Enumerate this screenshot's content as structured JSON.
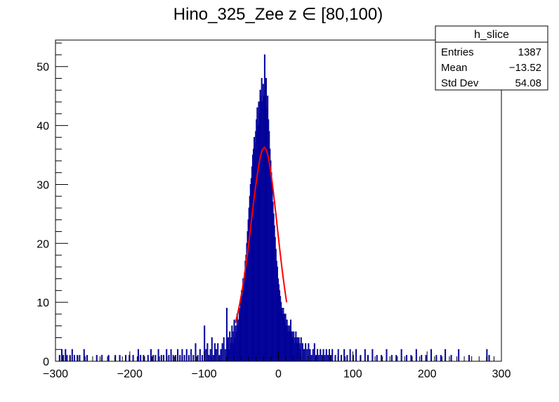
{
  "chart_data": {
    "type": "histogram",
    "title": "Hino_325_Zee z  ∈ [80,100)",
    "xlabel": "",
    "ylabel": "",
    "xlim": [
      -300,
      300
    ],
    "ylim": [
      0,
      54.5
    ],
    "x_ticks": [
      -300,
      -200,
      -100,
      0,
      100,
      200,
      300
    ],
    "y_ticks": [
      0,
      10,
      20,
      30,
      40,
      50
    ],
    "x_tick_labels": [
      "−300",
      "−200",
      "−100",
      "0",
      "100",
      "200",
      "300"
    ],
    "y_tick_labels": [
      "0",
      "10",
      "20",
      "30",
      "40",
      "50"
    ],
    "grid": false,
    "series": [
      {
        "kind": "histogram",
        "color": "#000099",
        "bins_from": -300,
        "bin_width": 1,
        "nonzero_bins": [
          [
            -295,
            1
          ],
          [
            -292,
            2
          ],
          [
            -290,
            1
          ],
          [
            -287,
            2
          ],
          [
            -285,
            1
          ],
          [
            -281,
            1
          ],
          [
            -278,
            2
          ],
          [
            -275,
            1
          ],
          [
            -271,
            1
          ],
          [
            -268,
            1
          ],
          [
            -262,
            2
          ],
          [
            -258,
            1
          ],
          [
            -245,
            1
          ],
          [
            -238,
            1
          ],
          [
            -229,
            1
          ],
          [
            -220,
            1
          ],
          [
            -214,
            1
          ],
          [
            -206,
            1
          ],
          [
            -201,
            1
          ],
          [
            -196,
            1
          ],
          [
            -189,
            2
          ],
          [
            -186,
            1
          ],
          [
            -182,
            1
          ],
          [
            -176,
            1
          ],
          [
            -172,
            2
          ],
          [
            -169,
            1
          ],
          [
            -166,
            1
          ],
          [
            -162,
            2
          ],
          [
            -158,
            1
          ],
          [
            -155,
            1
          ],
          [
            -151,
            2
          ],
          [
            -148,
            1
          ],
          [
            -145,
            2
          ],
          [
            -142,
            1
          ],
          [
            -139,
            1
          ],
          [
            -136,
            2
          ],
          [
            -133,
            1
          ],
          [
            -130,
            2
          ],
          [
            -127,
            1
          ],
          [
            -124,
            2
          ],
          [
            -121,
            1
          ],
          [
            -118,
            2
          ],
          [
            -115,
            1
          ],
          [
            -112,
            3
          ],
          [
            -109,
            1
          ],
          [
            -106,
            2
          ],
          [
            -103,
            1
          ],
          [
            -100,
            6
          ],
          [
            -98,
            2
          ],
          [
            -96,
            3
          ],
          [
            -94,
            1
          ],
          [
            -92,
            2
          ],
          [
            -90,
            4
          ],
          [
            -88,
            1
          ],
          [
            -86,
            3
          ],
          [
            -84,
            2
          ],
          [
            -82,
            3
          ],
          [
            -80,
            1
          ],
          [
            -78,
            2
          ],
          [
            -76,
            3
          ],
          [
            -74,
            4
          ],
          [
            -72,
            2
          ],
          [
            -70,
            9
          ],
          [
            -69,
            3
          ],
          [
            -68,
            4
          ],
          [
            -67,
            2
          ],
          [
            -66,
            5
          ],
          [
            -65,
            3
          ],
          [
            -64,
            4
          ],
          [
            -63,
            6
          ],
          [
            -62,
            3
          ],
          [
            -61,
            5
          ],
          [
            -60,
            7
          ],
          [
            -59,
            4
          ],
          [
            -58,
            6
          ],
          [
            -57,
            5
          ],
          [
            -56,
            8
          ],
          [
            -55,
            6
          ],
          [
            -54,
            7
          ],
          [
            -53,
            9
          ],
          [
            -52,
            8
          ],
          [
            -51,
            10
          ],
          [
            -50,
            12
          ],
          [
            -49,
            11
          ],
          [
            -48,
            14
          ],
          [
            -47,
            13
          ],
          [
            -46,
            15
          ],
          [
            -45,
            17
          ],
          [
            -44,
            18
          ],
          [
            -43,
            20
          ],
          [
            -42,
            22
          ],
          [
            -41,
            24
          ],
          [
            -40,
            26
          ],
          [
            -39,
            28
          ],
          [
            -38,
            30
          ],
          [
            -37,
            31
          ],
          [
            -36,
            33
          ],
          [
            -35,
            35
          ],
          [
            -34,
            36
          ],
          [
            -33,
            38
          ],
          [
            -32,
            37
          ],
          [
            -31,
            39
          ],
          [
            -30,
            41
          ],
          [
            -29,
            43
          ],
          [
            -28,
            40
          ],
          [
            -27,
            44
          ],
          [
            -26,
            42
          ],
          [
            -25,
            46
          ],
          [
            -24,
            45
          ],
          [
            -23,
            48
          ],
          [
            -22,
            44
          ],
          [
            -21,
            47
          ],
          [
            -20,
            45
          ],
          [
            -19,
            52
          ],
          [
            -18,
            46
          ],
          [
            -17,
            48
          ],
          [
            -16,
            43
          ],
          [
            -15,
            45
          ],
          [
            -14,
            41
          ],
          [
            -13,
            39
          ],
          [
            -12,
            36
          ],
          [
            -11,
            34
          ],
          [
            -10,
            32
          ],
          [
            -9,
            30
          ],
          [
            -8,
            27
          ],
          [
            -7,
            25
          ],
          [
            -6,
            23
          ],
          [
            -5,
            21
          ],
          [
            -4,
            19
          ],
          [
            -3,
            17
          ],
          [
            -2,
            16
          ],
          [
            -1,
            14
          ],
          [
            0,
            13
          ],
          [
            1,
            12
          ],
          [
            2,
            11
          ],
          [
            3,
            10
          ],
          [
            4,
            9
          ],
          [
            5,
            8
          ],
          [
            6,
            9
          ],
          [
            7,
            8
          ],
          [
            8,
            7
          ],
          [
            9,
            8
          ],
          [
            10,
            6
          ],
          [
            11,
            7
          ],
          [
            12,
            6
          ],
          [
            13,
            5
          ],
          [
            14,
            6
          ],
          [
            15,
            5
          ],
          [
            16,
            7
          ],
          [
            17,
            4
          ],
          [
            18,
            5
          ],
          [
            19,
            4
          ],
          [
            20,
            5
          ],
          [
            21,
            3
          ],
          [
            22,
            4
          ],
          [
            23,
            5
          ],
          [
            24,
            3
          ],
          [
            25,
            4
          ],
          [
            26,
            3
          ],
          [
            27,
            4
          ],
          [
            28,
            3
          ],
          [
            29,
            2
          ],
          [
            30,
            4
          ],
          [
            32,
            3
          ],
          [
            34,
            2
          ],
          [
            36,
            3
          ],
          [
            38,
            2
          ],
          [
            40,
            3
          ],
          [
            42,
            2
          ],
          [
            44,
            1
          ],
          [
            46,
            2
          ],
          [
            48,
            3
          ],
          [
            50,
            1
          ],
          [
            52,
            2
          ],
          [
            54,
            1
          ],
          [
            56,
            2
          ],
          [
            58,
            1
          ],
          [
            60,
            2
          ],
          [
            62,
            1
          ],
          [
            64,
            2
          ],
          [
            66,
            1
          ],
          [
            68,
            2
          ],
          [
            70,
            1
          ],
          [
            72,
            2
          ],
          [
            76,
            1
          ],
          [
            80,
            2
          ],
          [
            84,
            1
          ],
          [
            88,
            2
          ],
          [
            92,
            1
          ],
          [
            96,
            2
          ],
          [
            100,
            1
          ],
          [
            104,
            2
          ],
          [
            110,
            1
          ],
          [
            116,
            2
          ],
          [
            120,
            1
          ],
          [
            126,
            2
          ],
          [
            132,
            1
          ],
          [
            138,
            1
          ],
          [
            145,
            2
          ],
          [
            152,
            1
          ],
          [
            158,
            1
          ],
          [
            165,
            2
          ],
          [
            172,
            1
          ],
          [
            178,
            1
          ],
          [
            185,
            2
          ],
          [
            192,
            1
          ],
          [
            198,
            1
          ],
          [
            205,
            2
          ],
          [
            212,
            1
          ],
          [
            218,
            1
          ],
          [
            224,
            2
          ],
          [
            232,
            1
          ],
          [
            242,
            2
          ],
          [
            256,
            1
          ],
          [
            280,
            2
          ],
          [
            283,
            1
          ]
        ]
      },
      {
        "kind": "line",
        "color": "#ff0000",
        "x": [
          -58,
          -55,
          -52,
          -49,
          -46,
          -43,
          -40,
          -37,
          -34,
          -31,
          -28,
          -25,
          -22,
          -19,
          -16,
          -13,
          -10,
          -7,
          -4,
          -1,
          2,
          5,
          8,
          11
        ],
        "y": [
          6.5,
          8.0,
          9.8,
          11.9,
          14.3,
          17.0,
          20.0,
          23.2,
          26.4,
          29.4,
          32.0,
          34.3,
          35.8,
          36.3,
          35.8,
          34.3,
          31.9,
          28.9,
          25.6,
          22.1,
          18.7,
          15.5,
          12.6,
          10.0
        ]
      }
    ],
    "stats_box": {
      "title": "h_slice",
      "rows": [
        {
          "label": "Entries",
          "value": "1387"
        },
        {
          "label": "Mean",
          "value": "−13.52"
        },
        {
          "label": "Std Dev",
          "value": "54.08"
        }
      ]
    }
  }
}
